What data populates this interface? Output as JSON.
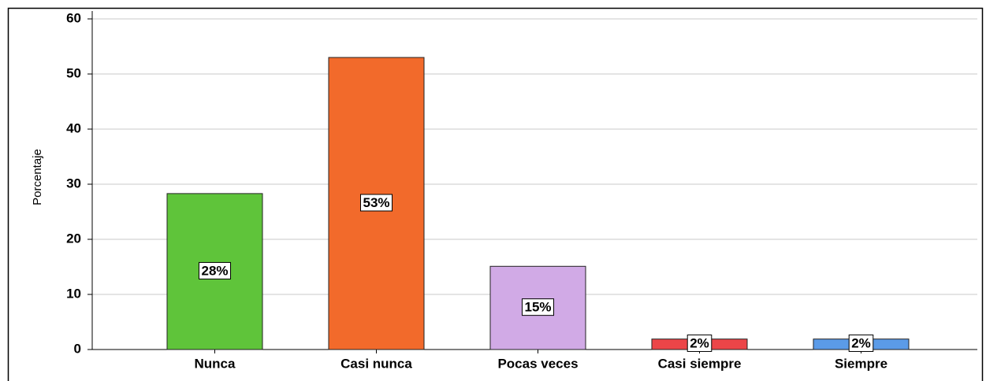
{
  "chart_data": {
    "type": "bar",
    "ylabel": "Porcentaje",
    "categories": [
      "Nunca",
      "Casi nunca",
      "Pocas veces",
      "Casi siempre",
      "Siempre"
    ],
    "values": [
      28.3,
      53,
      15.1,
      1.9,
      1.9
    ],
    "value_labels": [
      "28%",
      "53%",
      "15%",
      "2%",
      "2%"
    ],
    "colors": [
      "#5fc43a",
      "#f26a2b",
      "#d1aae6",
      "#ec4548",
      "#5b9be8"
    ],
    "ylim": [
      0,
      60
    ],
    "yticks": [
      0,
      10,
      20,
      30,
      40,
      50,
      60
    ],
    "grid": true
  }
}
